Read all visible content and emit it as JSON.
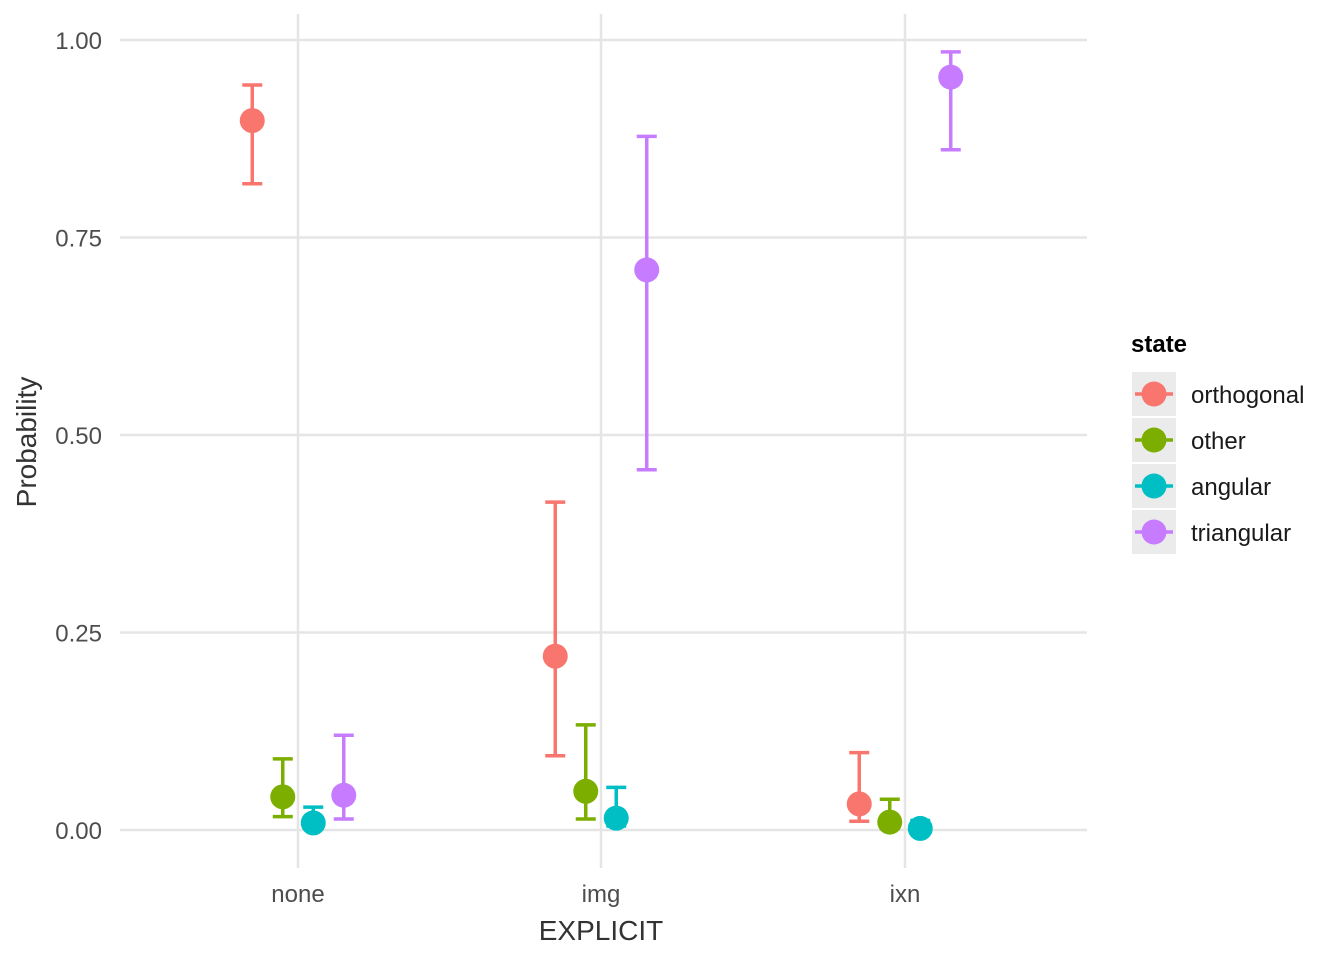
{
  "chart_data": {
    "type": "scatter",
    "subtype": "point-with-error-bars",
    "title": "",
    "xlabel": "EXPLICIT",
    "ylabel": "Probability",
    "categories": [
      "none",
      "img",
      "ixn"
    ],
    "ylim": [
      -0.04,
      1.03
    ],
    "yticks": [
      0.0,
      0.25,
      0.5,
      0.75,
      1.0
    ],
    "ytick_labels": [
      "0.00",
      "0.25",
      "0.50",
      "0.75",
      "1.00"
    ],
    "grid": true,
    "legend": {
      "title": "state",
      "position": "right"
    },
    "series": [
      {
        "name": "orthogonal",
        "color": "#F8766D",
        "values": [
          0.898,
          0.22,
          0.033
        ],
        "lower": [
          0.818,
          0.094,
          0.011
        ],
        "upper": [
          0.943,
          0.415,
          0.098
        ]
      },
      {
        "name": "other",
        "color": "#7CAE00",
        "values": [
          0.042,
          0.049,
          0.01
        ],
        "lower": [
          0.017,
          0.014,
          0.002
        ],
        "upper": [
          0.09,
          0.133,
          0.039
        ]
      },
      {
        "name": "angular",
        "color": "#00BFC4",
        "values": [
          0.009,
          0.015,
          0.002
        ],
        "lower": [
          0.003,
          0.005,
          0.001
        ],
        "upper": [
          0.029,
          0.054,
          0.012
        ]
      },
      {
        "name": "triangular",
        "color": "#C77CFF",
        "values": [
          0.044,
          0.709,
          0.953
        ],
        "lower": [
          0.014,
          0.456,
          0.861
        ],
        "upper": [
          0.12,
          0.878,
          0.985
        ]
      }
    ]
  }
}
